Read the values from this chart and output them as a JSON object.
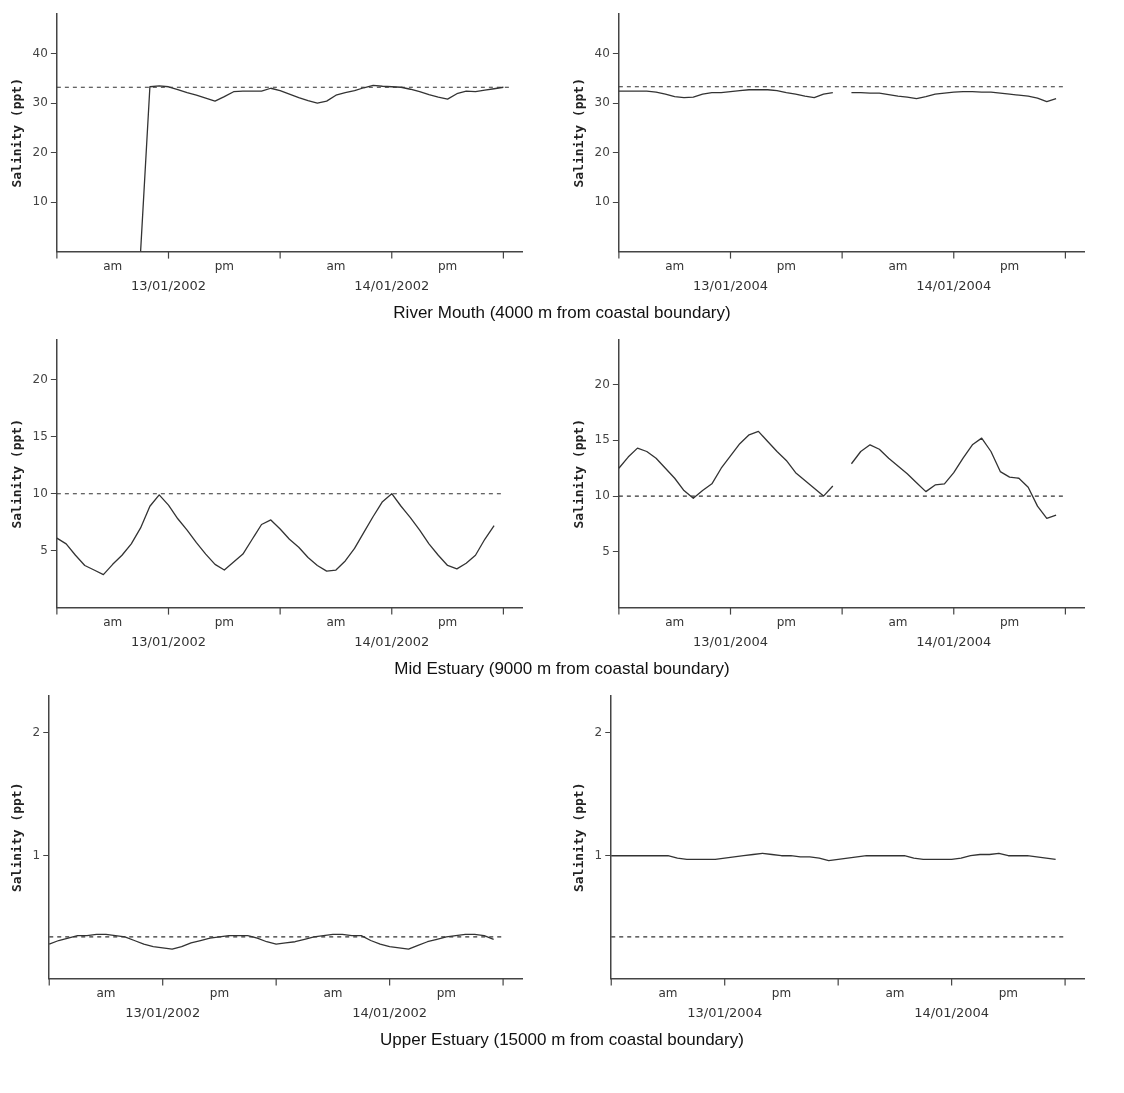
{
  "chart_data": [
    {
      "type": "line",
      "ylabel": "Salinity (ppt)",
      "xlabel": "River Mouth (4000  m from coastal boundary)",
      "color": "#333333",
      "marker": "none",
      "line_style": "solid",
      "grid": false,
      "legend": false,
      "annotations": [
        "13/01/2002",
        "14/01/2002"
      ],
      "categories": [
        null,
        null,
        null,
        null,
        null,
        null,
        "am",
        null,
        null,
        null,
        null,
        null,
        null,
        null,
        null,
        null,
        null,
        null,
        "pm",
        null,
        null,
        null,
        null,
        null,
        null,
        null,
        null,
        null,
        null,
        null,
        "am",
        null,
        null,
        null,
        null,
        null,
        null,
        null,
        null,
        null,
        null,
        null,
        "pm",
        null,
        null,
        null,
        null,
        null,
        null,
        null,
        null
      ],
      "values": [
        null,
        null,
        null,
        null,
        null,
        null,
        null,
        null,
        null,
        0,
        33.3,
        33.5,
        33.3,
        32.7,
        32.1,
        31.6,
        31.0,
        30.4,
        31.3,
        32.3,
        32.4,
        32.4,
        32.4,
        33.0,
        32.5,
        31.8,
        31.1,
        30.5,
        30.0,
        30.4,
        31.6,
        32.1,
        32.5,
        33.1,
        33.6,
        33.4,
        33.3,
        33.2,
        32.8,
        32.3,
        31.7,
        31.2,
        30.8,
        31.9,
        32.4,
        32.3,
        32.6,
        32.9,
        33.2,
        null,
        null
      ],
      "ylim": [
        0,
        48
      ],
      "yticks": [
        10,
        20,
        30,
        40
      ],
      "ref_lines": [
        {
          "axis": "y",
          "value": 33.2,
          "line_style": "dashed",
          "color": "#333333"
        }
      ]
    },
    {
      "type": "line",
      "ylabel": "Salinity (ppt)",
      "color": "#333333",
      "marker": "none",
      "line_style": "solid",
      "grid": false,
      "legend": false,
      "annotations": [
        "13/01/2004",
        "14/01/2004"
      ],
      "categories": [
        null,
        null,
        null,
        null,
        null,
        null,
        "am",
        null,
        null,
        null,
        null,
        null,
        null,
        null,
        null,
        null,
        null,
        null,
        "pm",
        null,
        null,
        null,
        null,
        null,
        null,
        null,
        null,
        null,
        null,
        null,
        "am",
        null,
        null,
        null,
        null,
        null,
        null,
        null,
        null,
        null,
        null,
        null,
        "pm",
        null,
        null,
        null,
        null,
        null,
        null,
        null,
        null
      ],
      "values": [
        32.4,
        32.4,
        32.4,
        32.4,
        32.2,
        31.8,
        31.3,
        31.1,
        31.2,
        31.8,
        32.1,
        32.1,
        32.3,
        32.5,
        32.7,
        32.7,
        32.7,
        32.5,
        32.1,
        31.8,
        31.4,
        31.1,
        31.8,
        32.1,
        null,
        32.1,
        32.1,
        32.0,
        32.0,
        31.7,
        31.4,
        31.2,
        30.9,
        31.3,
        31.8,
        32.0,
        32.2,
        32.3,
        32.3,
        32.2,
        32.2,
        32.0,
        31.8,
        31.6,
        31.4,
        31.0,
        30.3,
        30.9,
        null,
        null,
        null
      ],
      "ylim": [
        0,
        48
      ],
      "yticks": [
        10,
        20,
        30,
        40
      ],
      "ref_lines": [
        {
          "axis": "y",
          "value": 33.3,
          "line_style": "dashed",
          "color": "#333333"
        }
      ]
    },
    {
      "type": "line",
      "ylabel": "Salinity (ppt)",
      "xlabel": "Mid Estuary (9000  m from coastal boundary)",
      "color": "#333333",
      "marker": "none",
      "line_style": "solid",
      "grid": false,
      "legend": false,
      "annotations": [
        "13/01/2002",
        "14/01/2002"
      ],
      "categories": [
        null,
        null,
        null,
        null,
        null,
        null,
        "am",
        null,
        null,
        null,
        null,
        null,
        null,
        null,
        null,
        null,
        null,
        null,
        "pm",
        null,
        null,
        null,
        null,
        null,
        null,
        null,
        null,
        null,
        null,
        null,
        "am",
        null,
        null,
        null,
        null,
        null,
        null,
        null,
        null,
        null,
        null,
        null,
        "pm",
        null,
        null,
        null,
        null,
        null,
        null,
        null,
        null
      ],
      "values": [
        6.1,
        5.6,
        4.6,
        3.7,
        3.3,
        2.9,
        3.8,
        4.6,
        5.6,
        7.0,
        8.9,
        9.9,
        9.0,
        7.8,
        6.8,
        5.7,
        4.7,
        3.8,
        3.3,
        4.0,
        4.7,
        6.0,
        7.3,
        7.7,
        6.9,
        6.0,
        5.3,
        4.4,
        3.7,
        3.2,
        3.3,
        4.1,
        5.2,
        6.6,
        8.0,
        9.3,
        10.0,
        8.9,
        7.9,
        6.8,
        5.6,
        4.6,
        3.7,
        3.4,
        3.9,
        4.6,
        6.0,
        7.2,
        null,
        null,
        null
      ],
      "ylim": [
        0,
        23.5
      ],
      "yticks": [
        5,
        10,
        15,
        20
      ],
      "ref_lines": [
        {
          "axis": "y",
          "value": 10,
          "line_style": "dashed",
          "color": "#333333"
        }
      ]
    },
    {
      "type": "line",
      "ylabel": "Salinity (ppt)",
      "color": "#333333",
      "marker": "none",
      "line_style": "solid",
      "grid": false,
      "legend": false,
      "annotations": [
        "13/01/2004",
        "14/01/2004"
      ],
      "categories": [
        null,
        null,
        null,
        null,
        null,
        null,
        "am",
        null,
        null,
        null,
        null,
        null,
        null,
        null,
        null,
        null,
        null,
        null,
        "pm",
        null,
        null,
        null,
        null,
        null,
        null,
        null,
        null,
        null,
        null,
        null,
        "am",
        null,
        null,
        null,
        null,
        null,
        null,
        null,
        null,
        null,
        null,
        null,
        "pm",
        null,
        null,
        null,
        null,
        null,
        null,
        null,
        null
      ],
      "values": [
        12.5,
        13.5,
        14.3,
        14.0,
        13.4,
        12.5,
        11.6,
        10.5,
        9.8,
        10.5,
        11.1,
        12.5,
        13.6,
        14.7,
        15.5,
        15.8,
        14.9,
        14.0,
        13.2,
        12.1,
        11.4,
        10.7,
        10.0,
        10.9,
        null,
        12.9,
        14.0,
        14.6,
        14.2,
        13.4,
        12.7,
        12.0,
        11.2,
        10.4,
        11.0,
        11.1,
        12.1,
        13.4,
        14.6,
        15.2,
        14.0,
        12.2,
        11.7,
        11.6,
        10.8,
        9.1,
        8.0,
        8.3,
        null,
        null,
        null
      ],
      "ylim": [
        0,
        24
      ],
      "yticks": [
        5,
        10,
        15,
        20
      ],
      "ref_lines": [
        {
          "axis": "y",
          "value": 10,
          "line_style": "dashed",
          "color": "#333333"
        }
      ]
    },
    {
      "type": "line",
      "ylabel": "Salinity (ppt)",
      "xlabel": "Upper Estuary (15000  m from coastal boundary)",
      "color": "#333333",
      "marker": "none",
      "line_style": "solid",
      "grid": false,
      "legend": false,
      "annotations": [
        "13/01/2002",
        "14/01/2002"
      ],
      "categories": [
        null,
        null,
        null,
        null,
        null,
        null,
        "am",
        null,
        null,
        null,
        null,
        null,
        null,
        null,
        null,
        null,
        null,
        null,
        "pm",
        null,
        null,
        null,
        null,
        null,
        null,
        null,
        null,
        null,
        null,
        null,
        "am",
        null,
        null,
        null,
        null,
        null,
        null,
        null,
        null,
        null,
        null,
        null,
        "pm",
        null,
        null,
        null,
        null,
        null,
        null,
        null,
        null
      ],
      "values": [
        0.28,
        0.31,
        0.33,
        0.35,
        0.35,
        0.36,
        0.36,
        0.35,
        0.34,
        0.31,
        0.28,
        0.26,
        0.25,
        0.24,
        0.26,
        0.29,
        0.31,
        0.33,
        0.34,
        0.35,
        0.35,
        0.35,
        0.33,
        0.3,
        0.28,
        0.29,
        0.3,
        0.32,
        0.34,
        0.35,
        0.36,
        0.36,
        0.35,
        0.35,
        0.31,
        0.28,
        0.26,
        0.25,
        0.24,
        0.27,
        0.3,
        0.32,
        0.34,
        0.35,
        0.36,
        0.36,
        0.35,
        0.32,
        null,
        null,
        null
      ],
      "ylim": [
        0,
        2.3
      ],
      "yticks": [
        1,
        2
      ],
      "ref_lines": [
        {
          "axis": "y",
          "value": 0.34,
          "line_style": "dashed",
          "color": "#333333"
        }
      ]
    },
    {
      "type": "line",
      "ylabel": "Salinity (ppt)",
      "color": "#333333",
      "marker": "none",
      "line_style": "solid",
      "grid": false,
      "legend": false,
      "annotations": [
        "13/01/2004",
        "14/01/2004"
      ],
      "categories": [
        null,
        null,
        null,
        null,
        null,
        null,
        "am",
        null,
        null,
        null,
        null,
        null,
        null,
        null,
        null,
        null,
        null,
        null,
        "pm",
        null,
        null,
        null,
        null,
        null,
        null,
        null,
        null,
        null,
        null,
        null,
        "am",
        null,
        null,
        null,
        null,
        null,
        null,
        null,
        null,
        null,
        null,
        null,
        "pm",
        null,
        null,
        null,
        null,
        null,
        null,
        null,
        null
      ],
      "values": [
        1.0,
        1.0,
        1.0,
        1.0,
        1.0,
        1.0,
        1.0,
        0.98,
        0.97,
        0.97,
        0.97,
        0.97,
        0.98,
        0.99,
        1.0,
        1.01,
        1.02,
        1.01,
        1.0,
        1.0,
        0.99,
        0.99,
        0.98,
        0.96,
        0.97,
        0.98,
        0.99,
        1.0,
        1.0,
        1.0,
        1.0,
        1.0,
        0.98,
        0.97,
        0.97,
        0.97,
        0.97,
        0.98,
        1.0,
        1.01,
        1.01,
        1.02,
        1.0,
        1.0,
        1.0,
        0.99,
        0.98,
        0.97,
        null,
        null,
        null
      ],
      "ylim": [
        0,
        2.3
      ],
      "yticks": [
        1,
        2
      ],
      "ref_lines": [
        {
          "axis": "y",
          "value": 0.34,
          "line_style": "dashed",
          "color": "#333333"
        }
      ]
    }
  ]
}
